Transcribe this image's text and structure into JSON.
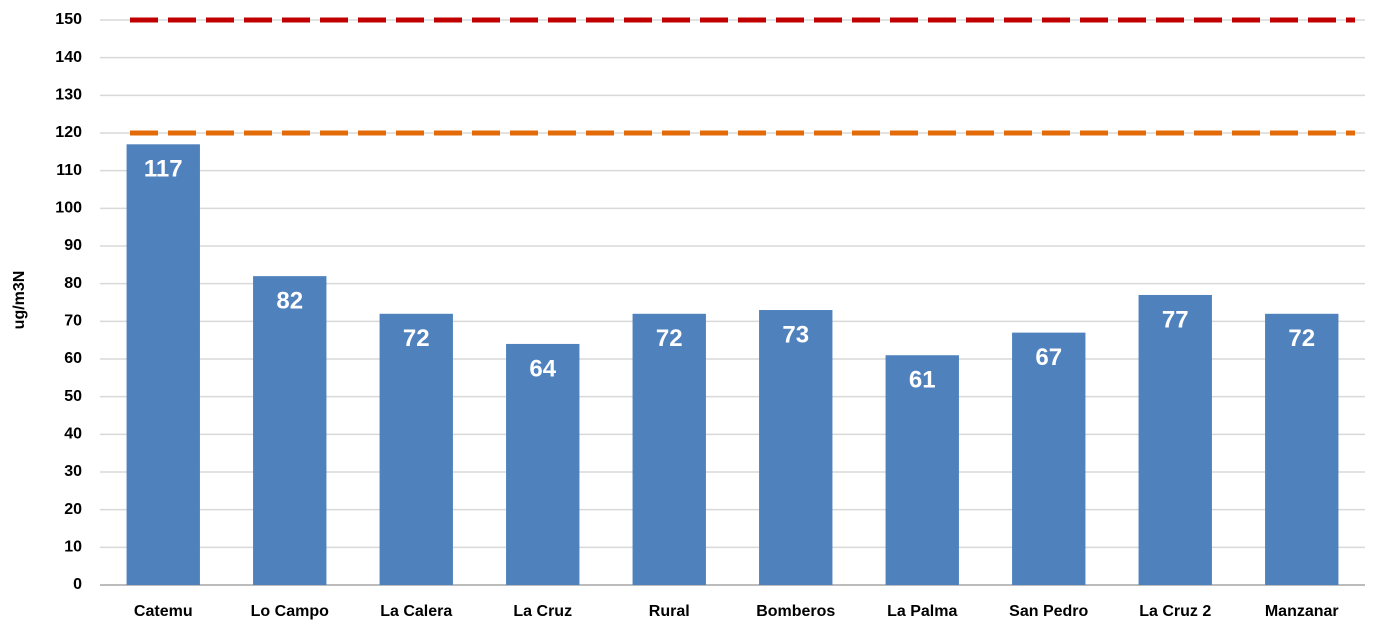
{
  "chart_data": {
    "type": "bar",
    "y_label": "ug/m3N",
    "categories": [
      "Catemu",
      "Lo Campo",
      "La Calera",
      "La Cruz",
      "Rural",
      "Bomberos",
      "La Palma",
      "San Pedro",
      "La Cruz 2",
      "Manzanar"
    ],
    "values": [
      117,
      82,
      72,
      64,
      72,
      73,
      61,
      67,
      77,
      72
    ],
    "color": "#4f81bd",
    "ylim": [
      0,
      150
    ],
    "yticks": [
      0,
      10,
      20,
      30,
      40,
      50,
      60,
      70,
      80,
      90,
      100,
      110,
      120,
      130,
      140,
      150
    ],
    "grid": true,
    "reference_lines": [
      {
        "value": 150,
        "color": "#c00000"
      },
      {
        "value": 120,
        "color": "#e36c09"
      }
    ]
  }
}
